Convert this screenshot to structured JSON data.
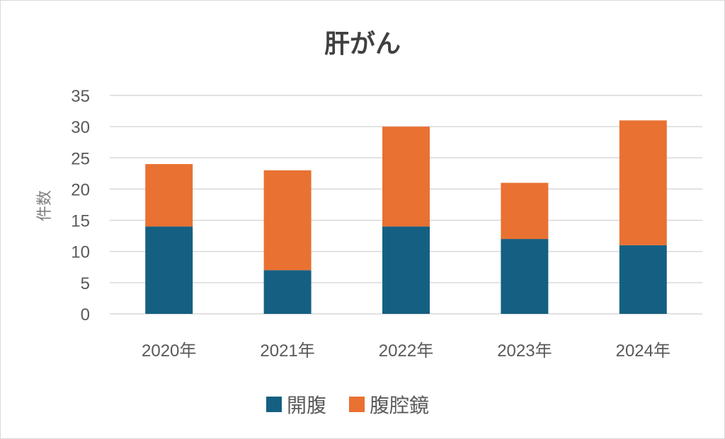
{
  "chart_data": {
    "type": "bar",
    "stacked": true,
    "title": "肝がん",
    "xlabel": "",
    "ylabel": "件数",
    "categories": [
      "2020年",
      "2021年",
      "2022年",
      "2023年",
      "2024年"
    ],
    "series": [
      {
        "name": "開腹",
        "values": [
          14,
          7,
          14,
          12,
          11
        ],
        "color": "#156082"
      },
      {
        "name": "腹腔鏡",
        "values": [
          10,
          16,
          16,
          9,
          20
        ],
        "color": "#E97132"
      }
    ],
    "ylim": [
      0,
      35
    ],
    "yticks": [
      0,
      5,
      10,
      15,
      20,
      25,
      30,
      35
    ],
    "grid": true,
    "legend": "bottom"
  }
}
